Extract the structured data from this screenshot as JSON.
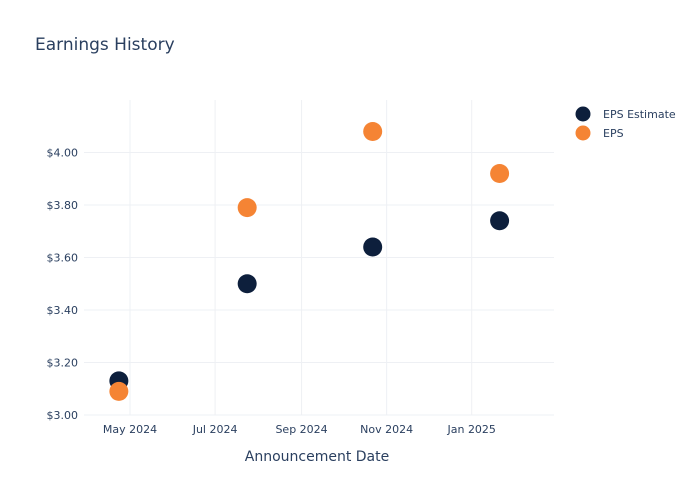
{
  "chart_data": {
    "type": "scatter",
    "title": "Earnings History",
    "xlabel": "Announcement Date",
    "ylabel": "",
    "x_type": "date",
    "xlim": [
      "2024-03-29",
      "2025-03-01"
    ],
    "ylim": [
      3.0,
      4.2
    ],
    "x_ticks": [
      {
        "date": "2024-05-01",
        "label": "May 2024"
      },
      {
        "date": "2024-07-01",
        "label": "Jul 2024"
      },
      {
        "date": "2024-09-01",
        "label": "Sep 2024"
      },
      {
        "date": "2024-11-01",
        "label": "Nov 2024"
      },
      {
        "date": "2025-01-01",
        "label": "Jan 2025"
      }
    ],
    "y_ticks": [
      {
        "value": 3.0,
        "label": "$3.00"
      },
      {
        "value": 3.2,
        "label": "$3.20"
      },
      {
        "value": 3.4,
        "label": "$3.40"
      },
      {
        "value": 3.6,
        "label": "$3.60"
      },
      {
        "value": 3.8,
        "label": "$3.80"
      },
      {
        "value": 4.0,
        "label": "$4.00"
      }
    ],
    "grid": true,
    "legend_position": "top-right",
    "series": [
      {
        "name": "EPS Estimate",
        "color": "#0d1f3c",
        "points": [
          {
            "x": "2024-04-23",
            "y": 3.13
          },
          {
            "x": "2024-07-24",
            "y": 3.5
          },
          {
            "x": "2024-10-22",
            "y": 3.64
          },
          {
            "x": "2025-01-21",
            "y": 3.74
          }
        ]
      },
      {
        "name": "EPS",
        "color": "#f58434",
        "points": [
          {
            "x": "2024-04-23",
            "y": 3.09
          },
          {
            "x": "2024-07-24",
            "y": 3.79
          },
          {
            "x": "2024-10-22",
            "y": 4.08
          },
          {
            "x": "2025-01-21",
            "y": 3.92
          }
        ]
      }
    ]
  }
}
